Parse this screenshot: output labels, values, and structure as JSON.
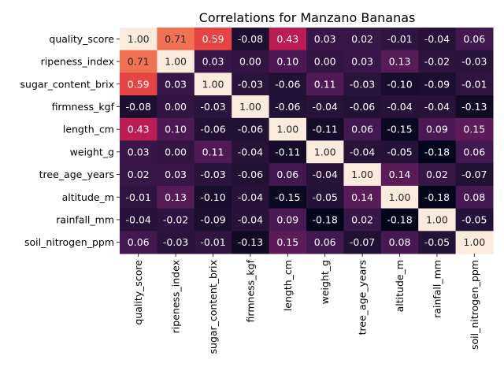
{
  "chart_data": {
    "type": "heatmap",
    "title": "Correlations for Manzano Bananas",
    "xlabel": "",
    "ylabel": "",
    "labels": [
      "quality_score",
      "ripeness_index",
      "sugar_content_brix",
      "firmness_kgf",
      "length_cm",
      "weight_g",
      "tree_age_years",
      "altitude_m",
      "rainfall_mm",
      "soil_nitrogen_ppm"
    ],
    "values": [
      [
        1.0,
        0.71,
        0.59,
        -0.08,
        0.43,
        0.03,
        0.02,
        -0.01,
        -0.04,
        0.06
      ],
      [
        0.71,
        1.0,
        0.03,
        0.0,
        0.1,
        -0.0,
        0.03,
        0.13,
        -0.02,
        -0.03
      ],
      [
        0.59,
        0.03,
        1.0,
        -0.03,
        -0.06,
        0.11,
        -0.03,
        -0.1,
        -0.09,
        -0.01
      ],
      [
        -0.08,
        0.0,
        -0.03,
        1.0,
        -0.06,
        -0.04,
        -0.06,
        -0.04,
        -0.04,
        -0.13
      ],
      [
        0.43,
        0.1,
        -0.06,
        -0.06,
        1.0,
        -0.11,
        0.06,
        -0.15,
        0.09,
        0.15
      ],
      [
        0.03,
        -0.0,
        0.11,
        -0.04,
        -0.11,
        1.0,
        -0.04,
        -0.05,
        -0.18,
        0.06
      ],
      [
        0.02,
        0.03,
        -0.03,
        -0.06,
        0.06,
        -0.04,
        1.0,
        0.14,
        0.02,
        -0.07
      ],
      [
        -0.01,
        0.13,
        -0.1,
        -0.04,
        -0.15,
        -0.05,
        0.14,
        1.0,
        -0.18,
        0.08
      ],
      [
        -0.04,
        -0.02,
        -0.09,
        -0.04,
        0.09,
        -0.18,
        0.02,
        -0.18,
        1.0,
        -0.05
      ],
      [
        0.06,
        -0.03,
        -0.01,
        -0.13,
        0.15,
        0.06,
        -0.07,
        0.08,
        -0.05,
        1.0
      ]
    ],
    "value_format": "2 decimals",
    "annotated": true,
    "colorbar": false,
    "colormap": "rocket",
    "color_range": [
      -0.18,
      1.0
    ]
  }
}
